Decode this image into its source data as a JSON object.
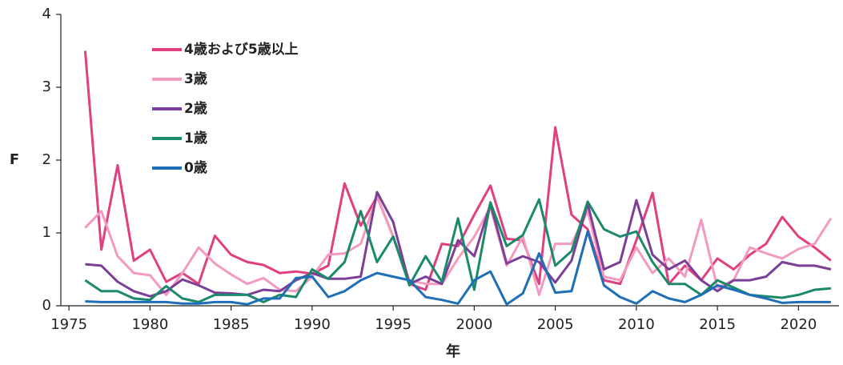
{
  "chart_data": {
    "type": "line",
    "xlabel": "年",
    "ylabel": "F",
    "x": [
      1976,
      1977,
      1978,
      1979,
      1980,
      1981,
      1982,
      1983,
      1984,
      1985,
      1986,
      1987,
      1988,
      1989,
      1990,
      1991,
      1992,
      1993,
      1994,
      1995,
      1996,
      1997,
      1998,
      1999,
      2000,
      2001,
      2002,
      2003,
      2004,
      2005,
      2006,
      2007,
      2008,
      2009,
      2010,
      2011,
      2012,
      2013,
      2014,
      2015,
      2016,
      2017,
      2018,
      2019,
      2020,
      2021,
      2022
    ],
    "xlim": [
      1974.5,
      2022.5
    ],
    "xticks": [
      1975,
      1980,
      1985,
      1990,
      1995,
      2000,
      2005,
      2010,
      2015,
      2020
    ],
    "ylim": [
      0,
      4
    ],
    "yticks": [
      0,
      1,
      2,
      3,
      4
    ],
    "legend": "upper left",
    "series": [
      {
        "name": "4歳および5歳以上",
        "color": "#e0407f",
        "values": [
          3.5,
          0.77,
          1.93,
          0.62,
          0.77,
          0.33,
          0.45,
          0.3,
          0.96,
          0.7,
          0.6,
          0.56,
          0.45,
          0.47,
          0.44,
          0.55,
          1.68,
          1.1,
          1.5,
          0.95,
          0.3,
          0.22,
          0.85,
          0.82,
          1.25,
          1.65,
          0.92,
          0.9,
          0.3,
          2.45,
          1.25,
          1.05,
          0.35,
          0.3,
          0.9,
          1.55,
          0.3,
          0.55,
          0.35,
          0.65,
          0.5,
          0.7,
          0.85,
          1.22,
          0.95,
          0.8,
          0.62
        ]
      },
      {
        "name": "3歳",
        "color": "#f49ac1",
        "values": [
          1.07,
          1.3,
          0.68,
          0.45,
          0.42,
          0.15,
          0.45,
          0.8,
          0.58,
          0.43,
          0.3,
          0.38,
          0.22,
          0.2,
          0.4,
          0.7,
          0.72,
          0.85,
          1.5,
          0.95,
          0.35,
          0.3,
          0.3,
          0.65,
          0.95,
          1.35,
          0.55,
          0.95,
          0.15,
          0.85,
          0.85,
          1.3,
          0.4,
          0.35,
          0.8,
          0.45,
          0.65,
          0.4,
          1.18,
          0.25,
          0.35,
          0.8,
          0.72,
          0.65,
          0.78,
          0.85,
          1.2
        ]
      },
      {
        "name": "2歳",
        "color": "#7b3f98",
        "values": [
          0.57,
          0.55,
          0.33,
          0.2,
          0.13,
          0.2,
          0.36,
          0.28,
          0.18,
          0.17,
          0.15,
          0.22,
          0.2,
          0.35,
          0.45,
          0.37,
          0.37,
          0.4,
          1.56,
          1.15,
          0.3,
          0.4,
          0.3,
          0.9,
          0.68,
          1.4,
          0.58,
          0.68,
          0.6,
          0.32,
          0.62,
          1.4,
          0.5,
          0.6,
          1.45,
          0.7,
          0.5,
          0.62,
          0.35,
          0.2,
          0.35,
          0.35,
          0.4,
          0.6,
          0.55,
          0.55,
          0.5
        ]
      },
      {
        "name": "1歳",
        "color": "#1a8a6a",
        "values": [
          0.35,
          0.2,
          0.2,
          0.1,
          0.08,
          0.27,
          0.1,
          0.05,
          0.15,
          0.15,
          0.15,
          0.05,
          0.15,
          0.12,
          0.5,
          0.37,
          0.6,
          1.3,
          0.6,
          0.95,
          0.28,
          0.68,
          0.33,
          1.2,
          0.22,
          1.42,
          0.82,
          0.97,
          1.46,
          0.55,
          0.75,
          1.43,
          1.05,
          0.95,
          1.02,
          0.6,
          0.3,
          0.3,
          0.15,
          0.35,
          0.25,
          0.15,
          0.13,
          0.11,
          0.15,
          0.22,
          0.24
        ]
      },
      {
        "name": "0歳",
        "color": "#1f6fb8",
        "values": [
          0.06,
          0.05,
          0.05,
          0.05,
          0.05,
          0.05,
          0.03,
          0.03,
          0.05,
          0.05,
          0.02,
          0.1,
          0.1,
          0.38,
          0.4,
          0.12,
          0.2,
          0.35,
          0.45,
          0.4,
          0.35,
          0.12,
          0.08,
          0.03,
          0.35,
          0.47,
          0.02,
          0.17,
          0.72,
          0.18,
          0.2,
          1.02,
          0.28,
          0.12,
          0.03,
          0.2,
          0.1,
          0.05,
          0.15,
          0.28,
          0.22,
          0.15,
          0.1,
          0.04,
          0.05,
          0.05,
          0.05
        ]
      }
    ]
  }
}
